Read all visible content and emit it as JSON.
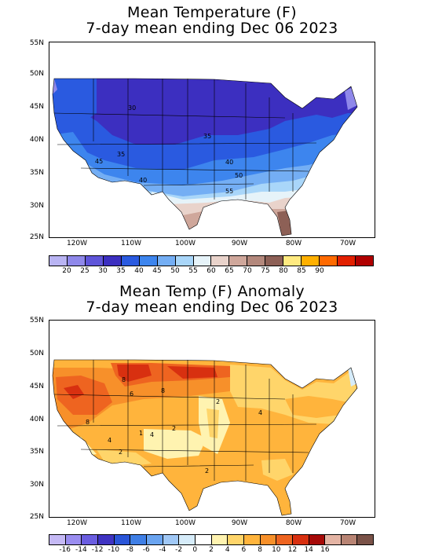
{
  "panel1": {
    "title_line1": "Mean Temperature (F)",
    "title_line2": "7-day mean ending Dec 06 2023",
    "lat_labels": [
      "55N",
      "50N",
      "45N",
      "40N",
      "35N",
      "30N",
      "25N"
    ],
    "lon_labels": [
      "120W",
      "110W",
      "100W",
      "90W",
      "80W",
      "70W"
    ],
    "contour_labels": [
      "30",
      "35",
      "35",
      "40",
      "45",
      "40",
      "50",
      "55"
    ],
    "colorbar": {
      "colors": [
        "#b9b4f3",
        "#8f88ea",
        "#5f55d9",
        "#3c2fc0",
        "#2a5ae0",
        "#3d85ee",
        "#74aef4",
        "#a9d6f9",
        "#e6f3f9",
        "#e9d3cb",
        "#cfa79b",
        "#b3887c",
        "#8d6056",
        "#ffea80",
        "#ffb000",
        "#ff6a00",
        "#e22000",
        "#b00000"
      ],
      "labels": [
        "20",
        "25",
        "30",
        "35",
        "40",
        "45",
        "50",
        "55",
        "60",
        "65",
        "70",
        "75",
        "80",
        "85",
        "90"
      ]
    }
  },
  "panel2": {
    "title_line1": "Mean Temp (F) Anomaly",
    "title_line2": "7-day mean ending Dec 06 2023",
    "lat_labels": [
      "55N",
      "50N",
      "45N",
      "40N",
      "35N",
      "30N",
      "25N"
    ],
    "lon_labels": [
      "120W",
      "110W",
      "100W",
      "90W",
      "80W",
      "70W"
    ],
    "contour_labels": [
      "8",
      "8",
      "6",
      "8",
      "2",
      "4",
      "4",
      "1",
      "2",
      "2",
      "2",
      "4"
    ],
    "colorbar": {
      "colors": [
        "#c5b9f5",
        "#9a8df0",
        "#6a5de0",
        "#3f33c2",
        "#2a55d8",
        "#3f7fe6",
        "#6aa4f0",
        "#a0c8f6",
        "#d6ecfa",
        "#ffffff",
        "#fff3b0",
        "#ffd56a",
        "#ffb43c",
        "#f7902a",
        "#ee6420",
        "#d83010",
        "#a60a08",
        "#e4b4a4",
        "#b88474",
        "#7a5248"
      ],
      "labels": [
        "-16",
        "-14",
        "-12",
        "-10",
        "-8",
        "-6",
        "-4",
        "-2",
        "0",
        "2",
        "4",
        "6",
        "8",
        "10",
        "12",
        "14",
        "16"
      ]
    }
  }
}
